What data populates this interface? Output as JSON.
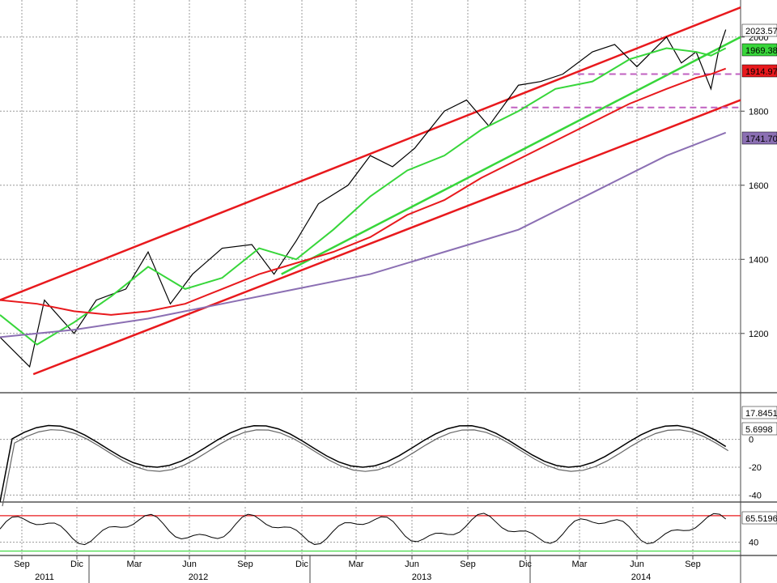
{
  "chart_data": [
    {
      "panel": "price",
      "type": "line",
      "y_axis_ticks": [
        "1200",
        "1400",
        "1600",
        "1800",
        "2000"
      ],
      "ylim": [
        1040,
        2100
      ],
      "grid": true,
      "x_axis_ticks": [
        "Sep",
        "Dic",
        "Mar",
        "Jun",
        "Sep",
        "Dic",
        "Mar",
        "Jun",
        "Sep",
        "Dic",
        "Mar",
        "Jun",
        "Sep"
      ],
      "year_labels": [
        "2011",
        "2012",
        "2013",
        "2014"
      ],
      "last_value_labels": [
        {
          "text": "2023.57",
          "color": "#000000"
        },
        {
          "text": "1969.38",
          "color": "#37d63a"
        },
        {
          "text": "1914.97",
          "color": "#e8191d"
        },
        {
          "text": "1741.70",
          "color": "#8b6fb3"
        }
      ],
      "series": [
        {
          "color": "#000000",
          "x": [
            0,
            0.04,
            0.06,
            0.1,
            0.13,
            0.17,
            0.2,
            0.23,
            0.26,
            0.3,
            0.34,
            0.37,
            0.4,
            0.43,
            0.47,
            0.5,
            0.53,
            0.56,
            0.6,
            0.63,
            0.66,
            0.7,
            0.73,
            0.76,
            0.8,
            0.83,
            0.86,
            0.9,
            0.92,
            0.94,
            0.96,
            0.97,
            0.98
          ],
          "y": [
            1190,
            1110,
            1290,
            1200,
            1290,
            1320,
            1420,
            1280,
            1360,
            1430,
            1440,
            1360,
            1450,
            1550,
            1600,
            1680,
            1650,
            1700,
            1800,
            1830,
            1760,
            1870,
            1880,
            1900,
            1960,
            1980,
            1920,
            2000,
            1930,
            1960,
            1860,
            1960,
            2020
          ]
        },
        {
          "color": "#37d63a",
          "x": [
            0,
            0.05,
            0.1,
            0.15,
            0.2,
            0.25,
            0.3,
            0.35,
            0.4,
            0.45,
            0.5,
            0.55,
            0.6,
            0.65,
            0.7,
            0.75,
            0.8,
            0.85,
            0.9,
            0.94,
            0.96,
            0.98
          ],
          "y": [
            1250,
            1170,
            1230,
            1300,
            1380,
            1320,
            1350,
            1430,
            1400,
            1480,
            1570,
            1640,
            1680,
            1750,
            1800,
            1860,
            1880,
            1940,
            1970,
            1960,
            1950,
            1970
          ]
        },
        {
          "color": "#e8191d",
          "x": [
            0,
            0.05,
            0.1,
            0.15,
            0.2,
            0.25,
            0.3,
            0.35,
            0.4,
            0.45,
            0.5,
            0.55,
            0.6,
            0.65,
            0.7,
            0.75,
            0.8,
            0.85,
            0.9,
            0.94,
            0.96,
            0.98
          ],
          "y": [
            1290,
            1280,
            1260,
            1250,
            1260,
            1280,
            1320,
            1360,
            1390,
            1420,
            1460,
            1520,
            1560,
            1620,
            1670,
            1720,
            1770,
            1820,
            1860,
            1890,
            1900,
            1915
          ]
        },
        {
          "color": "#8b6fb3",
          "x": [
            0,
            0.1,
            0.2,
            0.3,
            0.4,
            0.5,
            0.6,
            0.7,
            0.8,
            0.9,
            0.98
          ],
          "y": [
            1190,
            1210,
            1240,
            1280,
            1320,
            1360,
            1420,
            1480,
            1580,
            1680,
            1742
          ]
        }
      ],
      "channel_lines": [
        {
          "color": "#e8191d",
          "x": [
            0,
            1
          ],
          "y": [
            1290,
            2080
          ]
        },
        {
          "color": "#e8191d",
          "x": [
            0.045,
            1
          ],
          "y": [
            1090,
            1830
          ]
        },
        {
          "color": "#37d63a",
          "x": [
            0.38,
            1
          ],
          "y": [
            1360,
            2000
          ]
        }
      ],
      "horizontal_lines": [
        {
          "color": "#c060c0",
          "y": 1900,
          "x_from": 0.78
        },
        {
          "color": "#c060c0",
          "y": 1810,
          "x_from": 0.69
        }
      ]
    },
    {
      "panel": "oscillator",
      "type": "line",
      "y_axis_ticks": [
        "0",
        "-20",
        "-40"
      ],
      "ylim": [
        -45,
        30
      ],
      "grid": true,
      "last_value_labels": [
        {
          "text": "17.8451",
          "color": "#000000"
        },
        {
          "text": "5.6998",
          "color": "#000000"
        }
      ]
    },
    {
      "panel": "rsi",
      "type": "line",
      "y_axis_ticks": [
        "40"
      ],
      "ylim": [
        25,
        80
      ],
      "grid": true,
      "reference_lines": [
        {
          "color": "#e8191d",
          "value": 70
        },
        {
          "color": "#37d63a",
          "value": 30
        }
      ],
      "last_value_labels": [
        {
          "text": "65.5196",
          "color": "#000000"
        }
      ]
    }
  ]
}
